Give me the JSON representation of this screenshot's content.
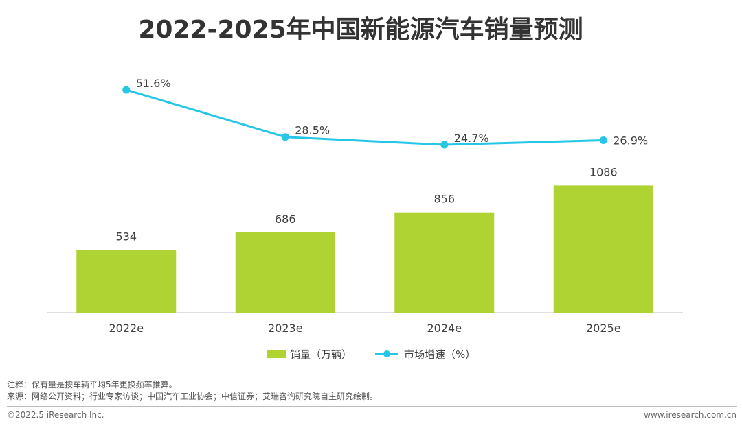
{
  "chart_data": {
    "type": "bar+line",
    "title": "2022-2025年中国新能源汽车销量预测",
    "categories": [
      "2022e",
      "2023e",
      "2024e",
      "2025e"
    ],
    "series": [
      {
        "name": "销量（万辆）",
        "type": "bar",
        "values": [
          534,
          686,
          856,
          1086
        ],
        "labels": [
          "534",
          "686",
          "856",
          "1086"
        ],
        "ylim": [
          0,
          1300
        ]
      },
      {
        "name": "市场增速（%）",
        "type": "line",
        "values": [
          51.6,
          28.5,
          24.7,
          26.9
        ],
        "labels": [
          "51.6%",
          "28.5%",
          "24.7%",
          "26.9%"
        ],
        "ylim": [
          0,
          60
        ]
      }
    ],
    "legend": [
      "销量（万辆）",
      "市场增速（%）"
    ],
    "legend_position": "bottom",
    "colors": {
      "bar": "#b0d334",
      "line": "#26c6e6",
      "axis": "#bfbfbf"
    }
  },
  "notes": {
    "note": "注释：保有量是按车辆平均5年更换频率推算。",
    "source": "来源：网络公开资料；行业专家访谈；中国汽车工业协会；中信证券；艾瑞咨询研究院自主研究绘制。"
  },
  "footer": {
    "copyright": "©2022.5 iResearch Inc.",
    "website": "www.iresearch.com.cn"
  }
}
